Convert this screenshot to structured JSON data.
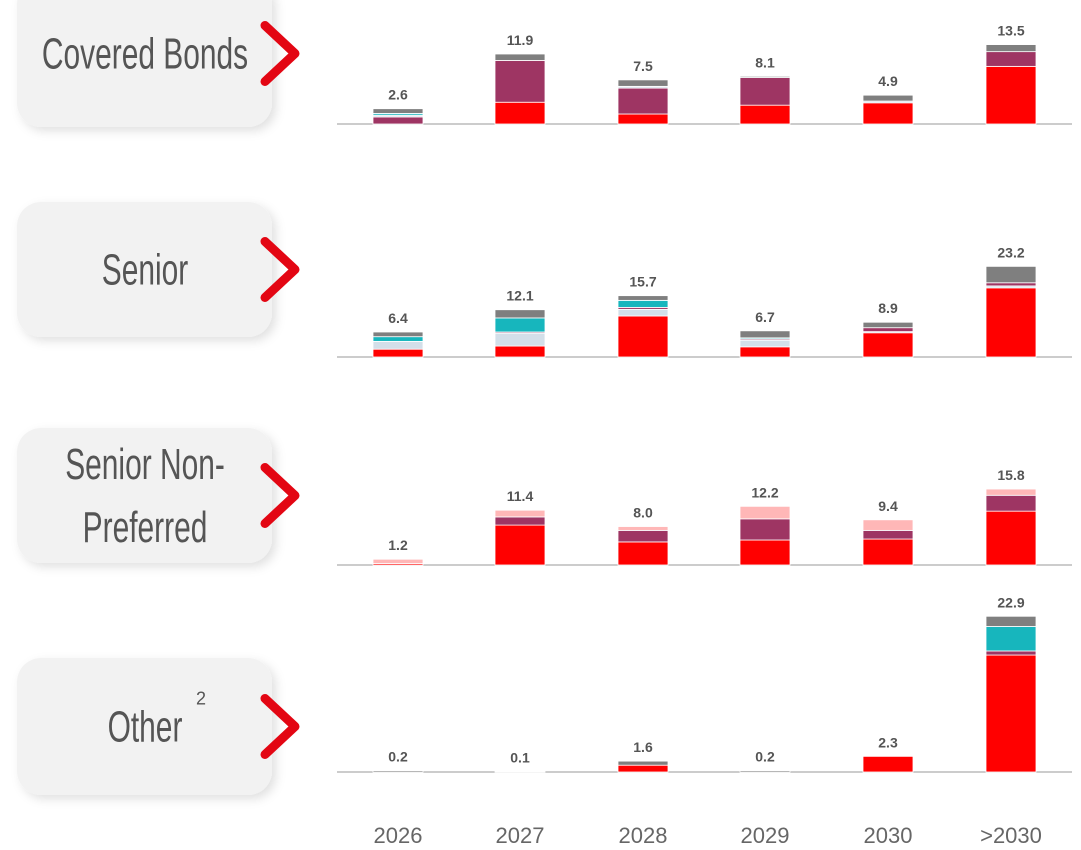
{
  "chart_data": [
    {
      "type": "stacked_bar",
      "title_lines": [
        "Covered Bonds"
      ],
      "ylim": [
        0,
        17
      ],
      "total_labels": [
        "2.6",
        "11.9",
        "7.5",
        "8.1",
        "4.9",
        "13.5"
      ],
      "series": [
        {
          "color": "#ff0000",
          "values": [
            0,
            3.7,
            1.7,
            3.2,
            3.6,
            9.8
          ]
        },
        {
          "color": "#9e3563",
          "values": [
            1.2,
            7.1,
            4.4,
            4.7,
            0,
            2.5
          ]
        },
        {
          "color": "#d3dfe9",
          "values": [
            0.3,
            0,
            0.3,
            0,
            0.3,
            0
          ]
        },
        {
          "color": "#17b6bd",
          "values": [
            0.3,
            0,
            0,
            0,
            0,
            0
          ]
        },
        {
          "color": "#7f7f7f",
          "values": [
            0.8,
            1.1,
            1.1,
            0.2,
            1.0,
            1.2
          ]
        }
      ]
    },
    {
      "type": "stacked_bar",
      "title_lines": [
        "Senior"
      ],
      "ylim": [
        0,
        25.6
      ],
      "total_labels": [
        "6.4",
        "12.1",
        "15.7",
        "6.7",
        "8.9",
        "23.2"
      ],
      "series": [
        {
          "color": "#ff0000",
          "values": [
            2.0,
            2.8,
            10.5,
            2.6,
            6.2,
            17.7
          ]
        },
        {
          "color": "#d3dfe9",
          "values": [
            2.0,
            3.3,
            1.7,
            1.7,
            0.3,
            0.5
          ]
        },
        {
          "color": "#9e3563",
          "values": [
            0,
            0.3,
            0.5,
            0.3,
            1.0,
            0.8
          ]
        },
        {
          "color": "#17b6bd",
          "values": [
            1.2,
            3.6,
            1.8,
            0.3,
            0,
            0
          ]
        },
        {
          "color": "#7f7f7f",
          "values": [
            1.2,
            2.1,
            1.2,
            1.8,
            1.4,
            4.2
          ]
        }
      ]
    },
    {
      "type": "stacked_bar",
      "title_lines": [
        "Senior Non-",
        "Preferred"
      ],
      "ylim": [
        0,
        20.8
      ],
      "total_labels": [
        "1.2",
        "11.4",
        "8.0",
        "12.2",
        "9.4",
        "15.8"
      ],
      "series": [
        {
          "color": "#ff0000",
          "values": [
            0.3,
            8.3,
            4.8,
            5.2,
            5.4,
            11.2
          ]
        },
        {
          "color": "#9e3563",
          "values": [
            0,
            1.7,
            2.4,
            4.4,
            1.8,
            3.3
          ]
        },
        {
          "color": "#ffb7b7",
          "values": [
            0.9,
            1.4,
            0.8,
            2.6,
            2.2,
            1.3
          ]
        }
      ]
    },
    {
      "type": "stacked_bar",
      "title_lines": [
        "Other"
      ],
      "footnote": "2",
      "ylim": [
        0,
        25
      ],
      "categories": [
        "2026",
        "2027",
        "2028",
        "2029",
        "2030",
        ">2030"
      ],
      "total_labels": [
        "0.2",
        "0.1",
        "1.6",
        "0.2",
        "2.3",
        "22.9"
      ],
      "series": [
        {
          "color": "#ff0000",
          "values": [
            0,
            0.1,
            1.0,
            0,
            2.3,
            17.2
          ]
        },
        {
          "color": "#9e3563",
          "values": [
            0,
            0,
            0,
            0,
            0,
            0.6
          ]
        },
        {
          "color": "#17b6bd",
          "values": [
            0,
            0,
            0,
            0,
            0,
            3.6
          ]
        },
        {
          "color": "#7f7f7f",
          "values": [
            0.2,
            0,
            0.6,
            0.2,
            0,
            1.5
          ]
        }
      ]
    }
  ]
}
